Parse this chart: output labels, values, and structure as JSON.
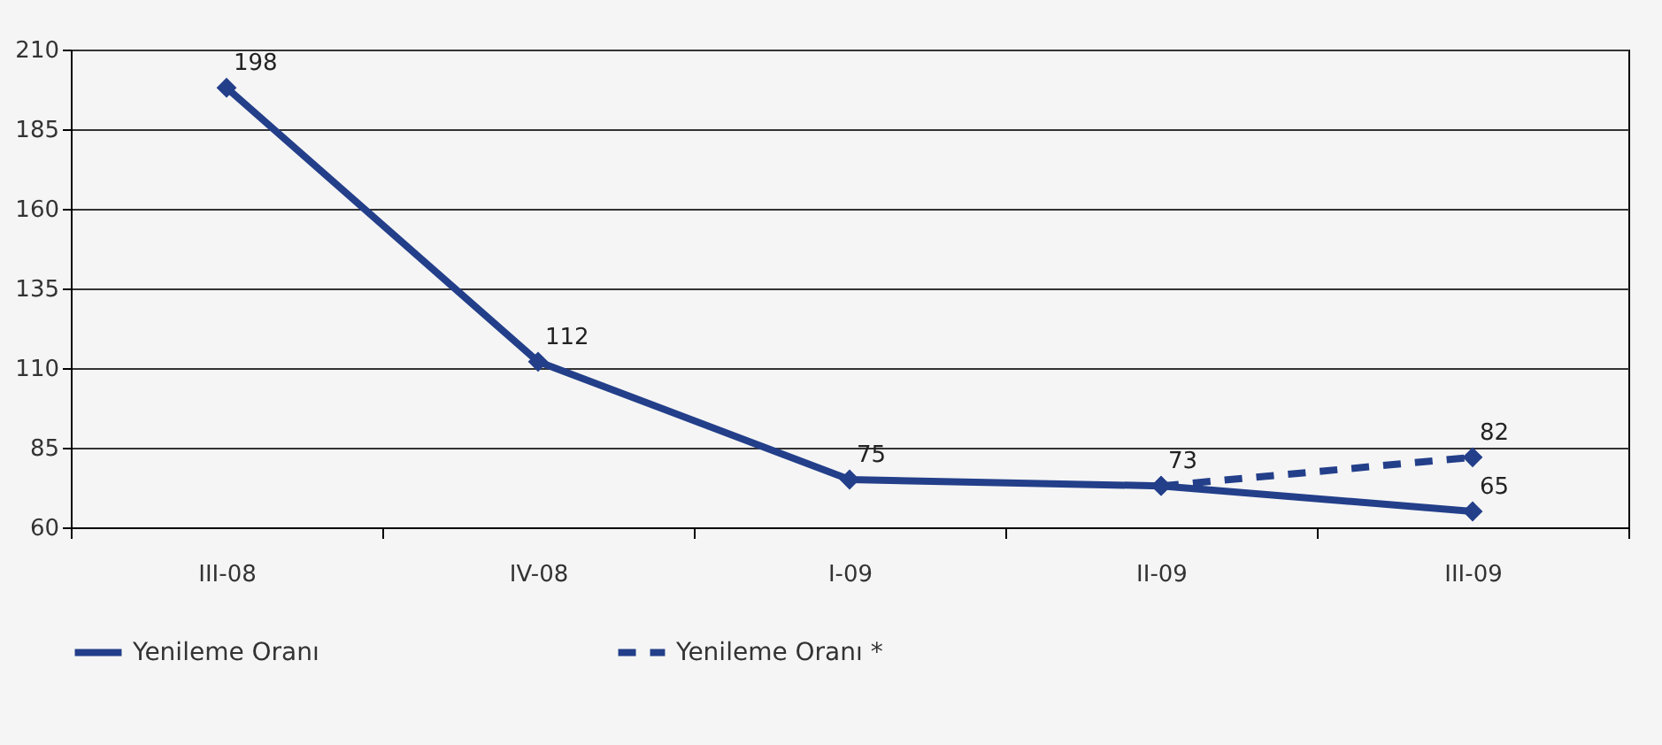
{
  "chart_data": {
    "type": "line",
    "categories": [
      "III-08",
      "IV-08",
      "I-09",
      "II-09",
      "III-09"
    ],
    "ylim": [
      60,
      210
    ],
    "yticks": [
      60,
      85,
      110,
      135,
      160,
      185,
      210
    ],
    "grid": "y",
    "legend": "bottom",
    "marker": "diamond",
    "series": [
      {
        "name": "Yenileme Oranı",
        "color": "#233f8a",
        "line_style": "solid",
        "values": [
          198,
          112,
          75,
          73,
          65
        ],
        "value_labels": [
          "198",
          "112",
          "75",
          "73",
          "65"
        ]
      },
      {
        "name": "Yenileme Oranı *",
        "color": "#233f8a",
        "line_style": "dashed",
        "values": [
          null,
          null,
          null,
          73,
          82
        ],
        "value_labels": [
          null,
          null,
          null,
          null,
          "82"
        ]
      }
    ]
  }
}
